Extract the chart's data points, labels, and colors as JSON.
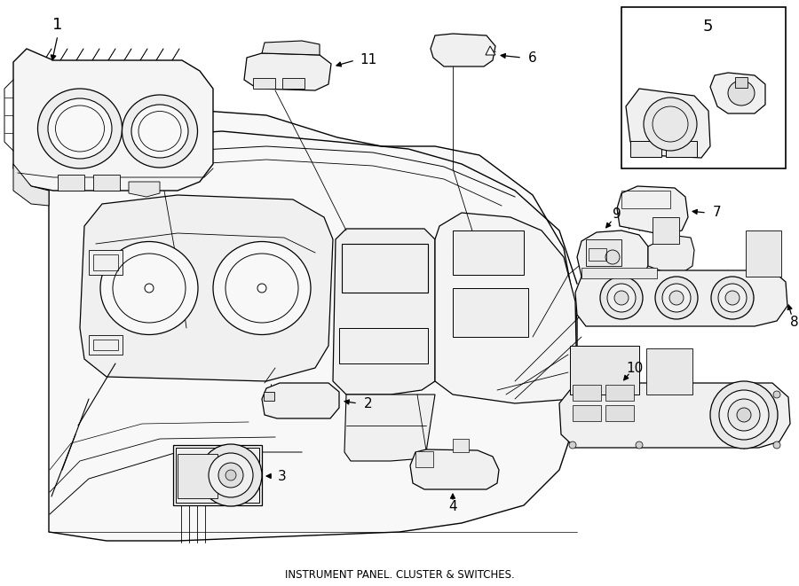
{
  "title": "INSTRUMENT PANEL. CLUSTER & SWITCHES.",
  "bg": "#ffffff",
  "lc": "#000000",
  "fig_w": 9.0,
  "fig_h": 6.61,
  "dpi": 100
}
